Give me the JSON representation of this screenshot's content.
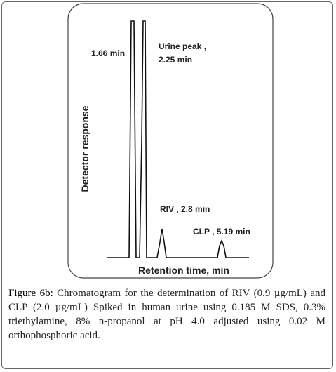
{
  "figure": {
    "annotations": [
      "1.66 min",
      "Urine peak ,",
      "2.25 min",
      "RIV , 2.8 min",
      "CLP , 5.19 min"
    ],
    "y_label": "Detector response",
    "x_label": "Retention time, min"
  },
  "caption": {
    "label": "Figure 6b:",
    "text": "Chromatogram for the determination of RIV (0.9 µg/mL) and CLP (2.0 µg/mL) Spiked in human urine using 0.185 M SDS, 0.3% triethylamine, 8% n-propanol at pH 4.0 adjusted using 0.02 M orthophosphoric acid."
  }
}
